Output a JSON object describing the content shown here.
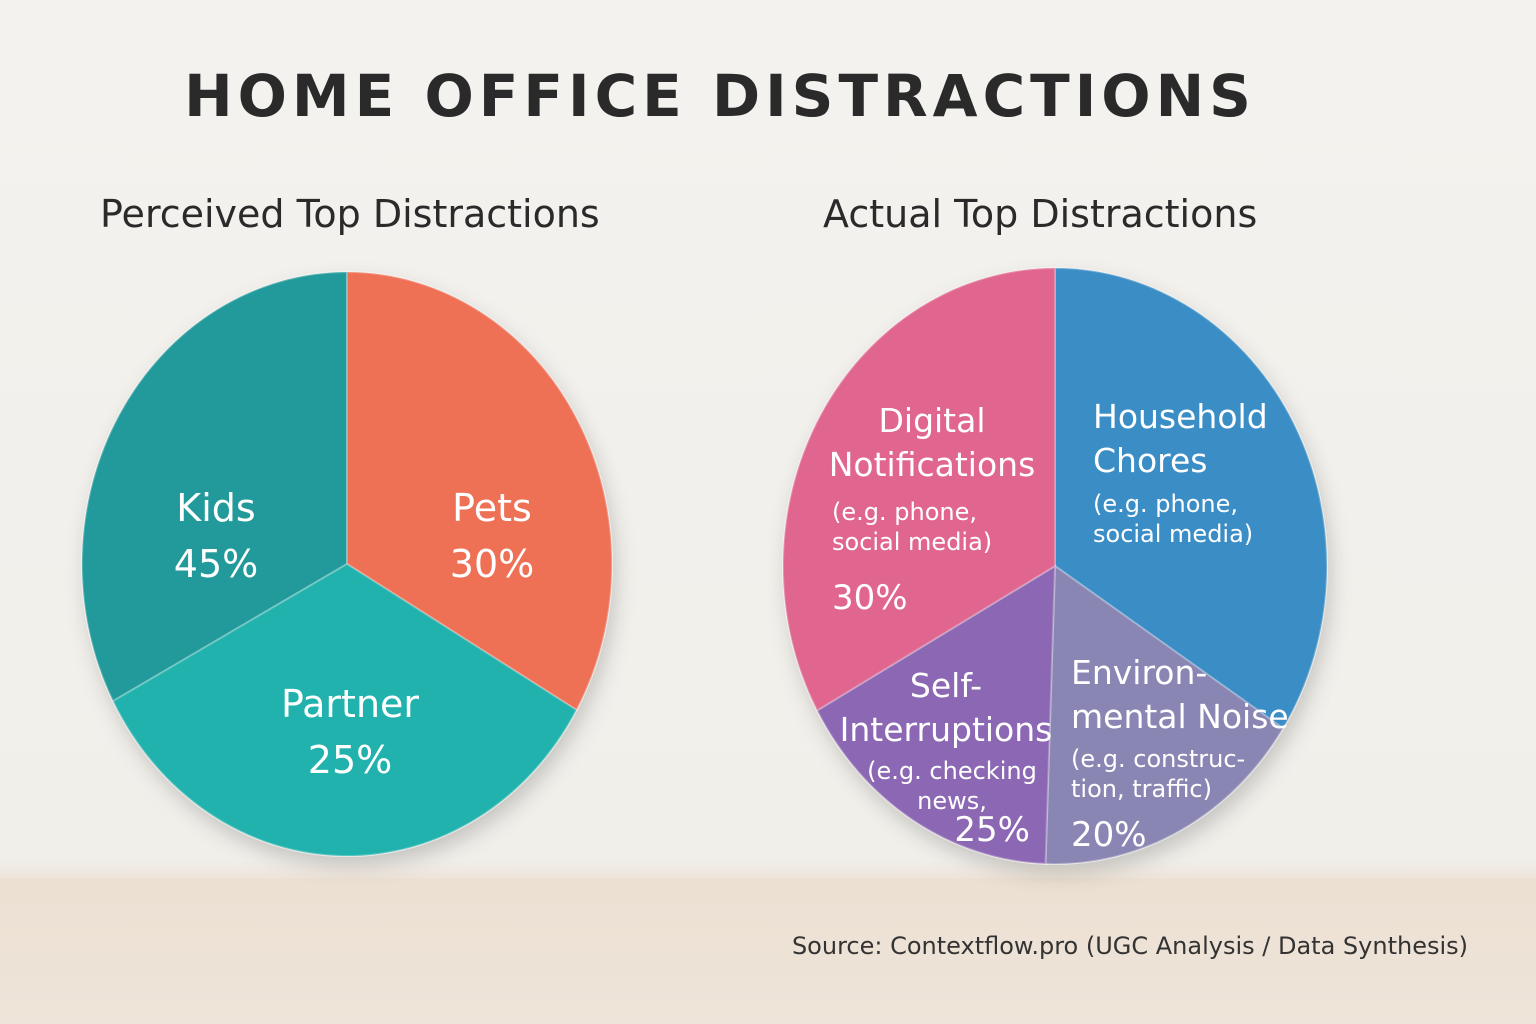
{
  "title": "HOME OFFICE DISTRACTIONS",
  "source": "Source: Contextflow.pro (UGC Analysis / Data Synthesis)",
  "chart_data": [
    {
      "type": "pie",
      "title": "Perceived Top Distractions",
      "slices": [
        {
          "label": "Kids",
          "sublabel": "",
          "value": 45,
          "value_label": "45%",
          "color": "#21b2ad"
        },
        {
          "label": "Pets",
          "sublabel": "",
          "value": 30,
          "value_label": "30%",
          "color": "#20999a"
        },
        {
          "label": "Partner",
          "sublabel": "",
          "value": 25,
          "value_label": "25%",
          "color": "#ee6f55"
        }
      ]
    },
    {
      "type": "pie",
      "title": "Actual Top Distractions",
      "slices": [
        {
          "label": "Digital Notifications",
          "sublabel": "(e.g. phone, social media)",
          "value": 30,
          "value_label": "30%",
          "color": "#e06690"
        },
        {
          "label": "Household Chores",
          "sublabel": "(e.g. phone, social media)",
          "value": null,
          "value_label": "",
          "color": "#3a8dc6"
        },
        {
          "label": "Environ-mental Noise",
          "sublabel": "(e.g. construc-tion, traffic)",
          "value": 20,
          "value_label": "20%",
          "color": "#8a86b4"
        },
        {
          "label": "Self-Interruptions",
          "sublabel": "(e.g. checking news,",
          "value": 25,
          "value_label": "25%",
          "color": "#8c68b4"
        }
      ]
    }
  ]
}
